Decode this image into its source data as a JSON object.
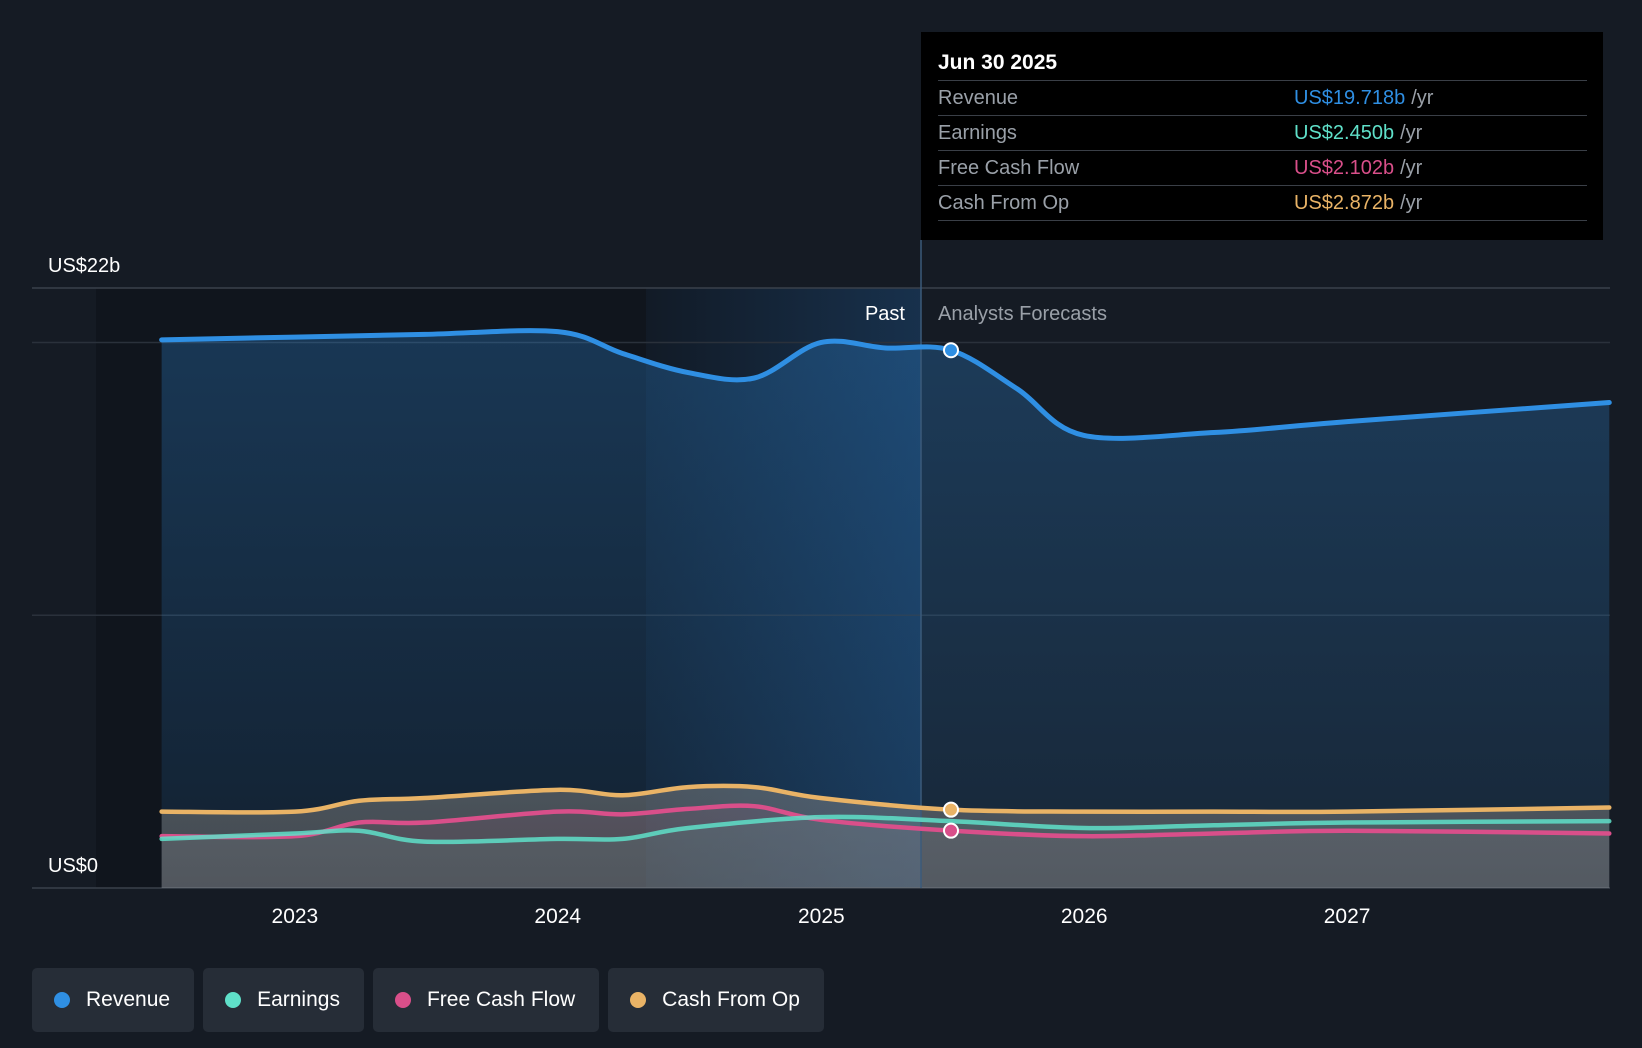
{
  "chart_data": {
    "type": "line",
    "y_axis": {
      "top_label": "US$22b",
      "bottom_label": "US$0",
      "ylim": [
        0,
        22
      ],
      "gridlines": [
        0,
        10,
        20,
        22
      ]
    },
    "x_axis": {
      "ticks": [
        "2023",
        "2024",
        "2025",
        "2026",
        "2027"
      ],
      "range": [
        "2022-06-30",
        "2027-12-31"
      ]
    },
    "regions": {
      "past_label": "Past",
      "forecast_label": "Analysts Forecasts",
      "divider_date": "2025-06-30"
    },
    "series": [
      {
        "name": "Revenue",
        "color": "#2f8fe3",
        "fill": true,
        "points": [
          [
            "2022-06-30",
            20.1
          ],
          [
            "2023-01-01",
            20.2
          ],
          [
            "2023-06-30",
            20.3
          ],
          [
            "2024-01-01",
            20.4
          ],
          [
            "2024-03-31",
            19.6
          ],
          [
            "2024-06-30",
            18.9
          ],
          [
            "2024-09-30",
            18.7
          ],
          [
            "2024-12-31",
            20.0
          ],
          [
            "2025-03-31",
            19.8
          ],
          [
            "2025-06-30",
            19.718
          ],
          [
            "2025-09-30",
            18.3
          ],
          [
            "2025-12-31",
            16.6
          ],
          [
            "2026-06-30",
            16.7
          ],
          [
            "2027-01-01",
            17.1
          ],
          [
            "2027-12-31",
            17.8
          ]
        ]
      },
      {
        "name": "Earnings",
        "color": "#5fe0c9",
        "fill": false,
        "points": [
          [
            "2022-06-30",
            1.8
          ],
          [
            "2023-01-01",
            2.0
          ],
          [
            "2023-03-31",
            2.1
          ],
          [
            "2023-06-30",
            1.7
          ],
          [
            "2023-12-31",
            1.8
          ],
          [
            "2024-03-31",
            1.8
          ],
          [
            "2024-06-30",
            2.2
          ],
          [
            "2024-12-31",
            2.6
          ],
          [
            "2025-06-30",
            2.45
          ],
          [
            "2025-12-31",
            2.2
          ],
          [
            "2026-06-30",
            2.3
          ],
          [
            "2027-01-01",
            2.4
          ],
          [
            "2027-12-31",
            2.45
          ]
        ]
      },
      {
        "name": "Free Cash Flow",
        "color": "#d94f8a",
        "fill": false,
        "points": [
          [
            "2022-06-30",
            1.9
          ],
          [
            "2023-01-01",
            1.9
          ],
          [
            "2023-03-31",
            2.4
          ],
          [
            "2023-06-30",
            2.4
          ],
          [
            "2023-12-31",
            2.8
          ],
          [
            "2024-03-31",
            2.7
          ],
          [
            "2024-06-30",
            2.9
          ],
          [
            "2024-09-30",
            3.0
          ],
          [
            "2024-12-31",
            2.5
          ],
          [
            "2025-06-30",
            2.102
          ],
          [
            "2025-12-31",
            1.9
          ],
          [
            "2026-06-30",
            2.0
          ],
          [
            "2027-01-01",
            2.1
          ],
          [
            "2027-12-31",
            2.0
          ]
        ]
      },
      {
        "name": "Cash From Op",
        "color": "#e9b366",
        "fill": false,
        "points": [
          [
            "2022-06-30",
            2.8
          ],
          [
            "2023-01-01",
            2.8
          ],
          [
            "2023-03-31",
            3.2
          ],
          [
            "2023-06-30",
            3.3
          ],
          [
            "2023-12-31",
            3.6
          ],
          [
            "2024-03-31",
            3.4
          ],
          [
            "2024-06-30",
            3.7
          ],
          [
            "2024-09-30",
            3.7
          ],
          [
            "2024-12-31",
            3.3
          ],
          [
            "2025-06-30",
            2.872
          ],
          [
            "2025-12-31",
            2.8
          ],
          [
            "2026-06-30",
            2.8
          ],
          [
            "2027-01-01",
            2.8
          ],
          [
            "2027-12-31",
            2.95
          ]
        ]
      }
    ],
    "legend": {
      "placement": "bottom-left"
    }
  },
  "tooltip": {
    "date": "Jun 30 2025",
    "unit": "/yr",
    "rows": [
      {
        "label": "Revenue",
        "value": "US$19.718b",
        "color": "#2f8fe3"
      },
      {
        "label": "Earnings",
        "value": "US$2.450b",
        "color": "#5fe0c9"
      },
      {
        "label": "Free Cash Flow",
        "value": "US$2.102b",
        "color": "#d94f8a"
      },
      {
        "label": "Cash From Op",
        "value": "US$2.872b",
        "color": "#e9b366"
      }
    ]
  },
  "legend_items": [
    {
      "label": "Revenue",
      "color": "#2f8fe3"
    },
    {
      "label": "Earnings",
      "color": "#5fe0c9"
    },
    {
      "label": "Free Cash Flow",
      "color": "#d94f8a"
    },
    {
      "label": "Cash From Op",
      "color": "#e9b366"
    }
  ],
  "colors": {
    "background": "#151b24",
    "grid": "#2f3640",
    "past_highlight": "#1a3a5c"
  }
}
